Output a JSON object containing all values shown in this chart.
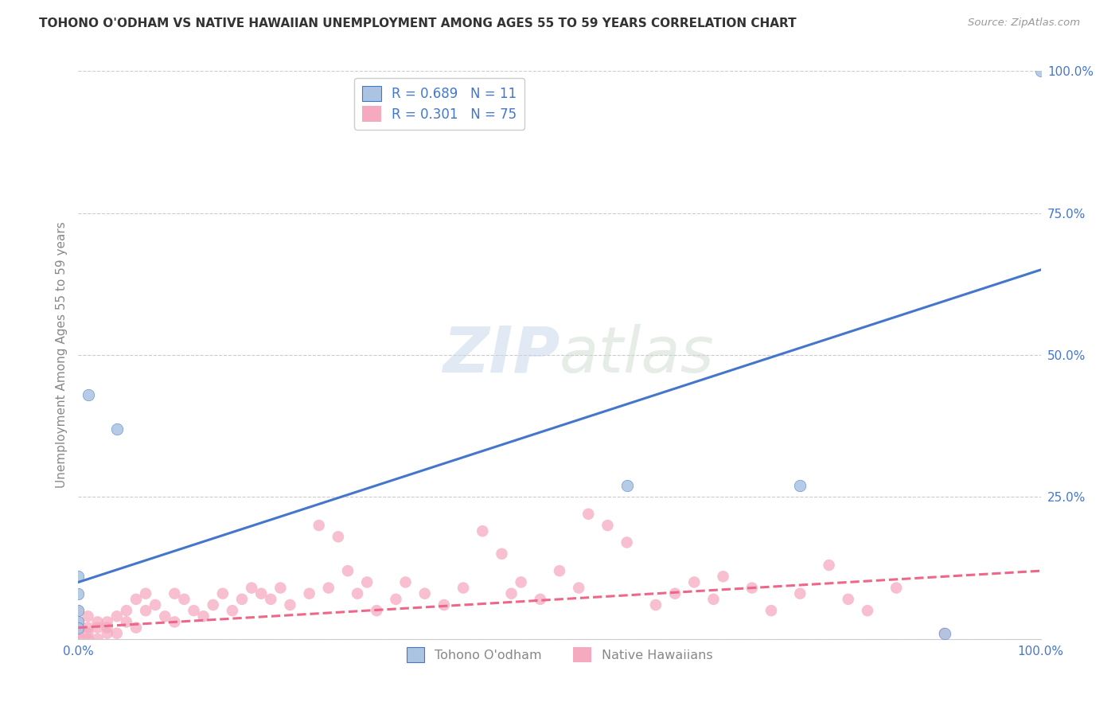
{
  "title": "TOHONO O'ODHAM VS NATIVE HAWAIIAN UNEMPLOYMENT AMONG AGES 55 TO 59 YEARS CORRELATION CHART",
  "source": "Source: ZipAtlas.com",
  "ylabel": "Unemployment Among Ages 55 to 59 years",
  "watermark_zip": "ZIP",
  "watermark_atlas": "atlas",
  "blue_label": "Tohono O'odham",
  "pink_label": "Native Hawaiians",
  "blue_R": 0.689,
  "blue_N": 11,
  "pink_R": 0.301,
  "pink_N": 75,
  "blue_color": "#aac4e2",
  "pink_color": "#f5aabf",
  "blue_line_color": "#4477cc",
  "pink_line_color": "#ee6688",
  "background_color": "#ffffff",
  "grid_color": "#cccccc",
  "title_color": "#333333",
  "source_color": "#999999",
  "legend_text_color": "#4477cc",
  "axis_label_color": "#888888",
  "tick_label_color": "#4477cc",
  "blue_scatter_x": [
    0.01,
    0.04,
    0.0,
    0.0,
    0.0,
    0.0,
    0.57,
    0.75,
    0.0,
    0.9,
    1.0
  ],
  "blue_scatter_y": [
    0.43,
    0.37,
    0.11,
    0.08,
    0.05,
    0.03,
    0.27,
    0.27,
    0.02,
    0.01,
    1.0
  ],
  "pink_scatter_x": [
    0.0,
    0.0,
    0.0,
    0.0,
    0.0,
    0.01,
    0.01,
    0.01,
    0.01,
    0.02,
    0.02,
    0.02,
    0.03,
    0.03,
    0.03,
    0.04,
    0.04,
    0.05,
    0.05,
    0.06,
    0.06,
    0.07,
    0.07,
    0.08,
    0.09,
    0.1,
    0.1,
    0.11,
    0.12,
    0.13,
    0.14,
    0.15,
    0.16,
    0.17,
    0.18,
    0.19,
    0.2,
    0.21,
    0.22,
    0.24,
    0.25,
    0.26,
    0.27,
    0.28,
    0.29,
    0.3,
    0.31,
    0.33,
    0.34,
    0.36,
    0.38,
    0.4,
    0.42,
    0.44,
    0.45,
    0.46,
    0.48,
    0.5,
    0.52,
    0.53,
    0.55,
    0.57,
    0.6,
    0.62,
    0.64,
    0.66,
    0.67,
    0.7,
    0.72,
    0.75,
    0.78,
    0.8,
    0.82,
    0.85,
    0.9
  ],
  "pink_scatter_y": [
    0.0,
    0.01,
    0.02,
    0.03,
    0.05,
    0.0,
    0.01,
    0.02,
    0.04,
    0.0,
    0.02,
    0.03,
    0.01,
    0.02,
    0.03,
    0.01,
    0.04,
    0.03,
    0.05,
    0.02,
    0.07,
    0.05,
    0.08,
    0.06,
    0.04,
    0.03,
    0.08,
    0.07,
    0.05,
    0.04,
    0.06,
    0.08,
    0.05,
    0.07,
    0.09,
    0.08,
    0.07,
    0.09,
    0.06,
    0.08,
    0.2,
    0.09,
    0.18,
    0.12,
    0.08,
    0.1,
    0.05,
    0.07,
    0.1,
    0.08,
    0.06,
    0.09,
    0.19,
    0.15,
    0.08,
    0.1,
    0.07,
    0.12,
    0.09,
    0.22,
    0.2,
    0.17,
    0.06,
    0.08,
    0.1,
    0.07,
    0.11,
    0.09,
    0.05,
    0.08,
    0.13,
    0.07,
    0.05,
    0.09,
    0.01
  ],
  "xlim": [
    0.0,
    1.0
  ],
  "ylim": [
    0.0,
    1.0
  ],
  "xticks": [
    0.0,
    0.25,
    0.5,
    0.75,
    1.0
  ],
  "xtick_labels": [
    "0.0%",
    "",
    "",
    "",
    "100.0%"
  ],
  "yticks": [
    0.0,
    0.25,
    0.5,
    0.75,
    1.0
  ],
  "ytick_labels": [
    "",
    "25.0%",
    "50.0%",
    "75.0%",
    "100.0%"
  ],
  "scatter_size": 110,
  "blue_line_y0": 0.1,
  "blue_line_y1": 0.65,
  "pink_line_y0": 0.02,
  "pink_line_y1": 0.12
}
